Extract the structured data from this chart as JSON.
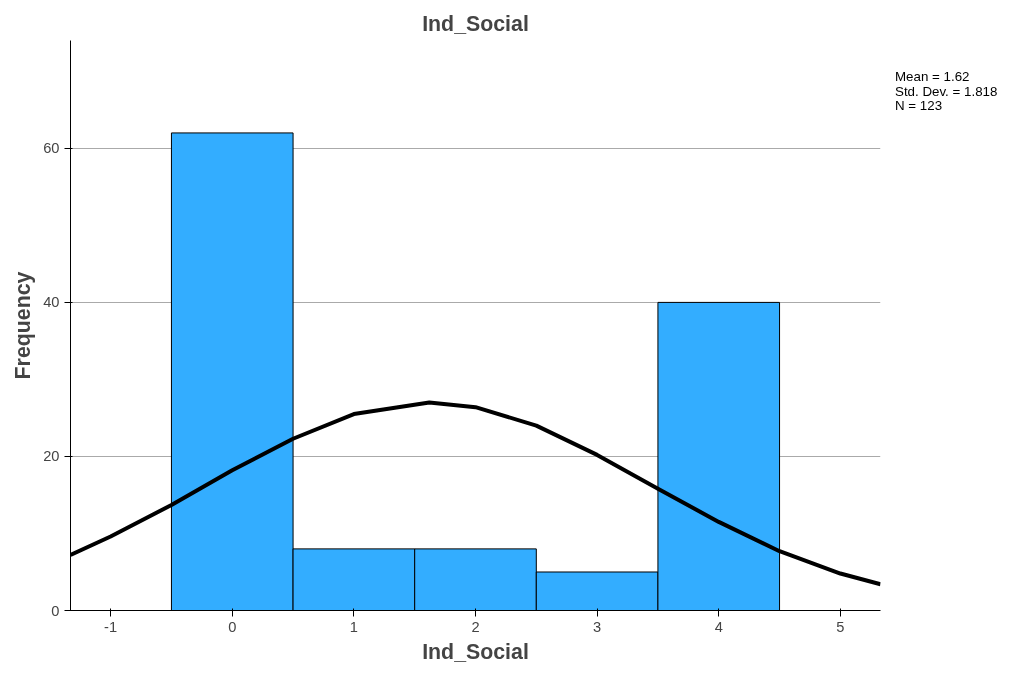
{
  "chart_data": {
    "type": "histogram",
    "title": "Ind_Social",
    "xlabel": "Ind_Social",
    "ylabel": "Frequency",
    "bins": [
      -0.5,
      0.5,
      1.5,
      2.5,
      3.5,
      4.5
    ],
    "values": [
      62,
      8,
      8,
      5,
      40
    ],
    "color": "#33adff",
    "series": [
      {
        "type": "line",
        "color": "#000000",
        "x": [
          -1.33,
          -1,
          -0.5,
          0,
          0.5,
          1,
          1.62,
          2,
          2.5,
          3,
          3.5,
          4,
          4.5,
          5,
          5.33
        ],
        "values": [
          7.2,
          9.6,
          13.7,
          18.2,
          22.3,
          25.5,
          27.0,
          26.4,
          24.0,
          20.2,
          15.8,
          11.5,
          7.7,
          4.8,
          3.4
        ]
      }
    ],
    "xlim": [
      -1.33,
      5.33
    ],
    "ylim": [
      0,
      74
    ],
    "xticks": [
      -1,
      0,
      1,
      2,
      3,
      4,
      5
    ],
    "yticks": [
      0,
      20,
      40,
      60
    ],
    "grid": "y",
    "annotations": [
      "Mean = 1.62",
      "Std. Dev. = 1.818",
      "N = 123"
    ]
  }
}
